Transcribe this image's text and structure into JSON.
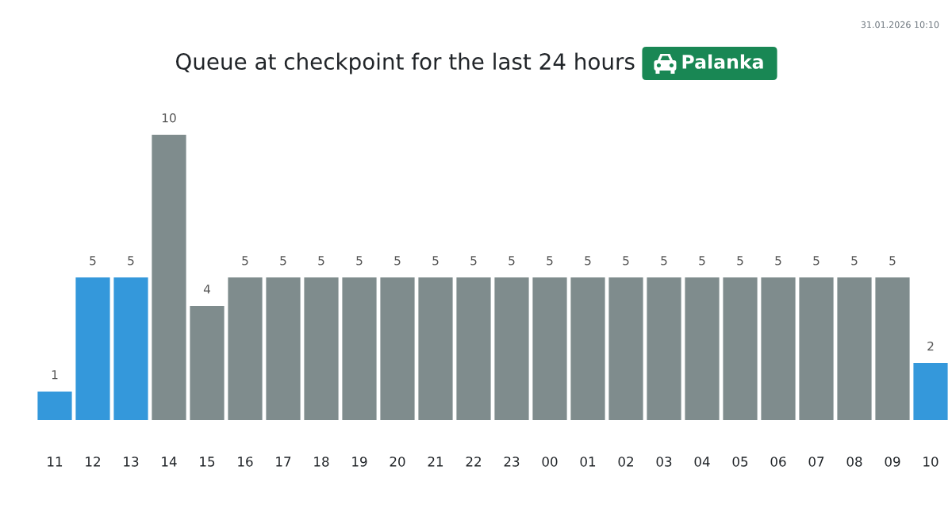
{
  "chart_data": {
    "type": "bar",
    "title": "Queue at checkpoint for the last 24 hours",
    "subtitle": "Palanka",
    "annotations": [
      "31.01.2026 10:10"
    ],
    "categories": [
      "11",
      "12",
      "13",
      "14",
      "15",
      "16",
      "17",
      "18",
      "19",
      "20",
      "21",
      "22",
      "23",
      "00",
      "01",
      "02",
      "03",
      "04",
      "05",
      "06",
      "07",
      "08",
      "09",
      "10"
    ],
    "values": [
      1,
      5,
      5,
      10,
      4,
      5,
      5,
      5,
      5,
      5,
      5,
      5,
      5,
      5,
      5,
      5,
      5,
      5,
      5,
      5,
      5,
      5,
      5,
      2
    ],
    "colors": [
      "#3498db",
      "#3498db",
      "#3498db",
      "#7f8c8d",
      "#7f8c8d",
      "#7f8c8d",
      "#7f8c8d",
      "#7f8c8d",
      "#7f8c8d",
      "#7f8c8d",
      "#7f8c8d",
      "#7f8c8d",
      "#7f8c8d",
      "#7f8c8d",
      "#7f8c8d",
      "#7f8c8d",
      "#7f8c8d",
      "#7f8c8d",
      "#7f8c8d",
      "#7f8c8d",
      "#7f8c8d",
      "#7f8c8d",
      "#7f8c8d",
      "#3498db"
    ],
    "data_labels": true
  }
}
